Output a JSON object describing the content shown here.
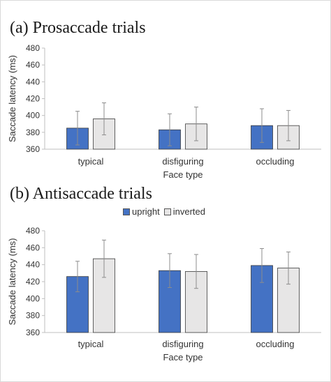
{
  "colors": {
    "upright": "#4472c4",
    "inverted": "#e7e6e6",
    "stroke": "#3b3b3b",
    "error": "#8c8c8c",
    "axis": "#bfbfbf"
  },
  "legend": {
    "items": [
      {
        "name": "upright"
      },
      {
        "name": "inverted"
      }
    ],
    "placement": "top-center of panel b"
  },
  "chart_data": [
    {
      "type": "bar",
      "title": "(a) Prosaccade trials",
      "xlabel": "Face type",
      "ylabel": "Saccade latency (ms)",
      "ylim": [
        360,
        480
      ],
      "yticks": [
        "480",
        "460",
        "440",
        "420",
        "400",
        "380",
        "360"
      ],
      "categories": [
        "typical",
        "disfiguring",
        "occluding"
      ],
      "grid": false,
      "series": [
        {
          "name": "upright",
          "values": [
            385,
            383,
            388
          ],
          "error": [
            20,
            19,
            20
          ]
        },
        {
          "name": "inverted",
          "values": [
            396,
            390,
            388
          ],
          "error": [
            19,
            20,
            18
          ]
        }
      ]
    },
    {
      "type": "bar",
      "title": "(b) Antisaccade trials",
      "xlabel": "Face type",
      "ylabel": "Saccade latency (ms)",
      "ylim": [
        360,
        480
      ],
      "yticks": [
        "480",
        "460",
        "440",
        "420",
        "400",
        "380",
        "360"
      ],
      "categories": [
        "typical",
        "disfiguring",
        "occluding"
      ],
      "grid": false,
      "series": [
        {
          "name": "upright",
          "values": [
            426,
            433,
            439
          ],
          "error": [
            18,
            20,
            20
          ]
        },
        {
          "name": "inverted",
          "values": [
            447,
            432,
            436
          ],
          "error": [
            22,
            20,
            19
          ]
        }
      ]
    }
  ]
}
